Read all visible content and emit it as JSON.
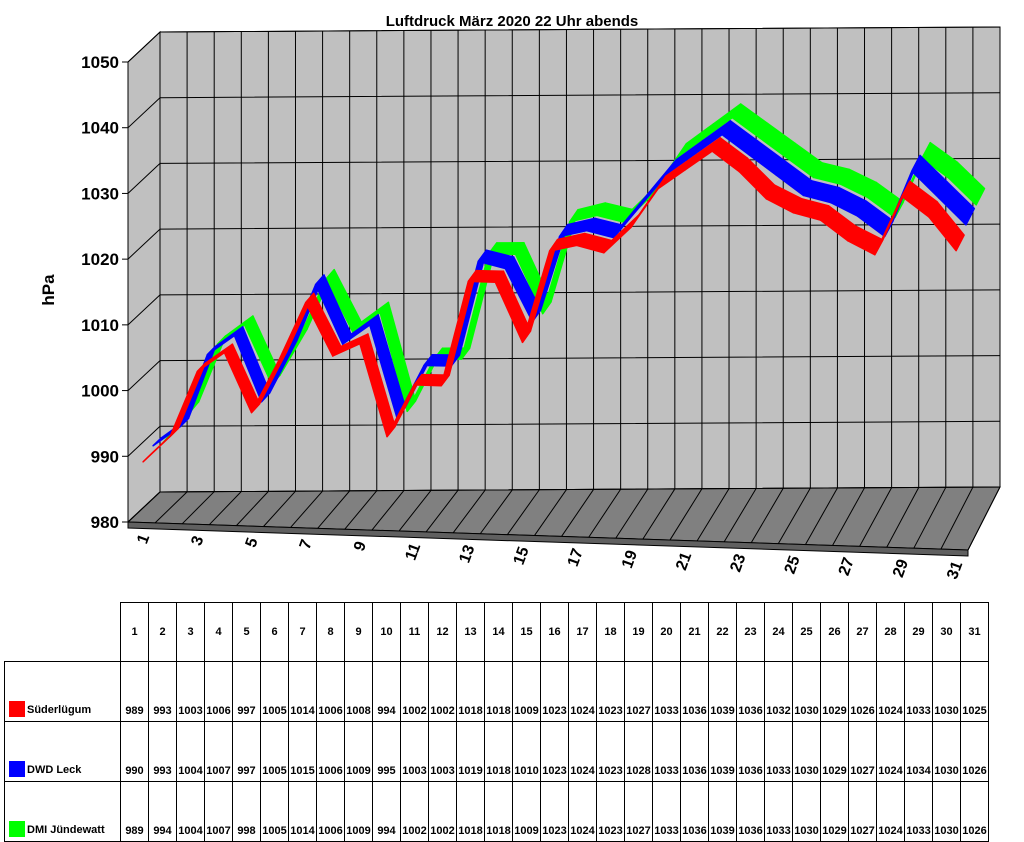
{
  "chart_data": {
    "type": "line",
    "title": "Luftdruck März 2020 22 Uhr abends",
    "ylabel": "hPa",
    "xlabel": "",
    "ylim": [
      980,
      1050
    ],
    "yticks": [
      "980",
      "990",
      "1000",
      "1010",
      "1020",
      "1030",
      "1040",
      "1050"
    ],
    "x": [
      "1",
      "2",
      "3",
      "4",
      "5",
      "6",
      "7",
      "8",
      "9",
      "10",
      "11",
      "12",
      "13",
      "14",
      "15",
      "16",
      "17",
      "18",
      "19",
      "20",
      "21",
      "22",
      "23",
      "24",
      "25",
      "26",
      "27",
      "28",
      "29",
      "30",
      "31"
    ],
    "xticks_shown": [
      "1",
      "3",
      "5",
      "7",
      "9",
      "11",
      "13",
      "15",
      "17",
      "19",
      "21",
      "23",
      "25",
      "27",
      "29",
      "31"
    ],
    "grid": true,
    "style": "3d",
    "series": [
      {
        "name": "Süderlügum",
        "color": "#ff0000",
        "values": [
          989,
          993,
          1003,
          1006,
          997,
          1005,
          1014,
          1006,
          1008,
          994,
          1002,
          1002,
          1018,
          1018,
          1009,
          1023,
          1024,
          1023,
          1027,
          1033,
          1036,
          1039,
          1036,
          1032,
          1030,
          1029,
          1026,
          1024,
          1033,
          1030,
          1025
        ]
      },
      {
        "name": "DWD Leck",
        "color": "#0000ff",
        "values": [
          990,
          993,
          1004,
          1007,
          997,
          1005,
          1015,
          1006,
          1009,
          995,
          1003,
          1003,
          1019,
          1018,
          1010,
          1023,
          1024,
          1023,
          1028,
          1033,
          1036,
          1039,
          1036,
          1033,
          1030,
          1029,
          1027,
          1024,
          1034,
          1030,
          1026
        ]
      },
      {
        "name": "DMI Jündewatt",
        "color": "#00ff00",
        "values": [
          989,
          994,
          1004,
          1007,
          998,
          1005,
          1014,
          1006,
          1009,
          994,
          1002,
          1002,
          1018,
          1018,
          1009,
          1023,
          1024,
          1023,
          1027,
          1033,
          1036,
          1039,
          1036,
          1033,
          1030,
          1029,
          1027,
          1024,
          1033,
          1030,
          1026
        ]
      }
    ]
  },
  "colors": {
    "wall": "#c0c0c0",
    "floor": "#808080",
    "grid": "#000000"
  }
}
